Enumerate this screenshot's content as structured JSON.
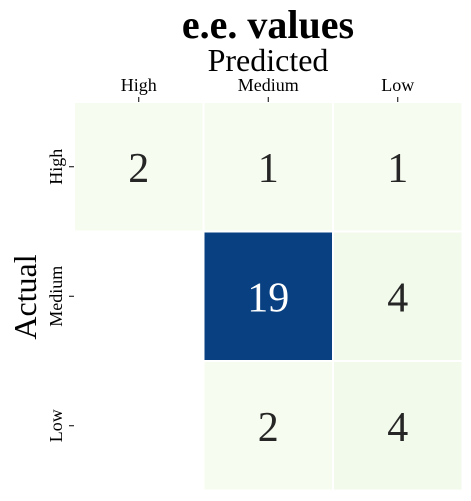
{
  "chart_data": {
    "type": "heatmap",
    "title": "e.e. values",
    "xlabel": "Predicted",
    "ylabel": "Actual",
    "x_categories": [
      "High",
      "Medium",
      "Low"
    ],
    "y_categories": [
      "High",
      "Medium",
      "Low"
    ],
    "values": [
      [
        2,
        1,
        1
      ],
      [
        null,
        19,
        4
      ],
      [
        null,
        2,
        4
      ]
    ],
    "colormap": {
      "low": "#f7fcf0",
      "mid": "#ccebc5",
      "high": "#084081"
    },
    "value_text_colors": {
      "dark": "#262626",
      "light": "#ffffff"
    }
  }
}
